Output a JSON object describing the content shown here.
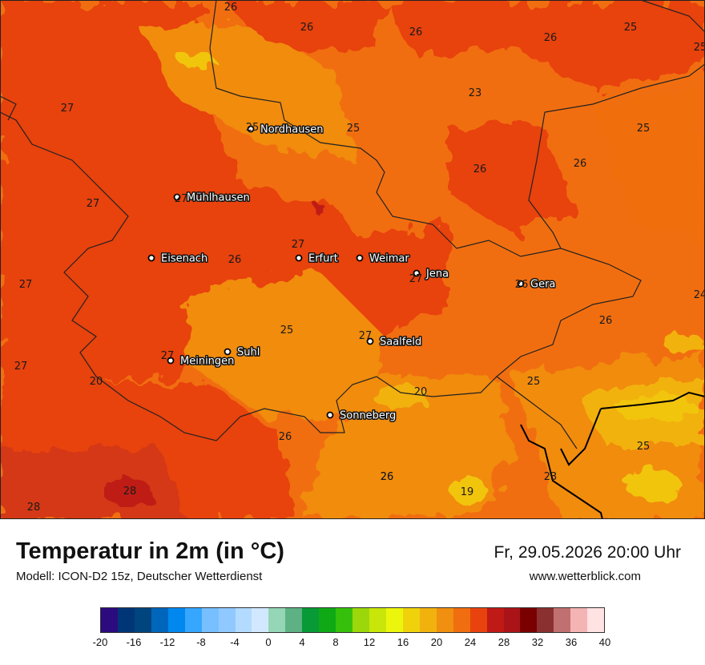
{
  "map": {
    "cities": [
      {
        "name": "Nordhausen"
      },
      {
        "name": "Mühlhausen"
      },
      {
        "name": "Eisenach"
      },
      {
        "name": "Erfurt"
      },
      {
        "name": "Weimar"
      },
      {
        "name": "Jena"
      },
      {
        "name": "Gera"
      },
      {
        "name": "Suhl"
      },
      {
        "name": "Meiningen"
      },
      {
        "name": "Saalfeld"
      },
      {
        "name": "Sonneberg"
      }
    ],
    "values": [
      "26",
      "26",
      "26",
      "26",
      "25",
      "25",
      "27",
      "23",
      "25",
      "27",
      "25",
      "26",
      "26",
      "27",
      "26",
      "27",
      "27",
      "27",
      "25",
      "27",
      "26",
      "25",
      "27",
      "27",
      "24",
      "26",
      "26",
      "20",
      "20",
      "25",
      "26",
      "25",
      "26",
      "23",
      "28",
      "28",
      "19"
    ],
    "colors": {
      "hot_dark": "#d43814",
      "hot": "#e8430f",
      "warm": "#f16e10",
      "orange": "#f18c10",
      "yellow": "#f2c511"
    }
  },
  "footer": {
    "title": "Temperatur in 2m (in °C)",
    "model": "Modell: ICON-D2 15z, Deutscher Wetterdienst",
    "datetime": "Fr, 29.05.2026 20:00 Uhr",
    "website": "www.wetterblick.com"
  },
  "scale": {
    "colors": [
      "#2c0b7f",
      "#003578",
      "#00457e",
      "#0066bb",
      "#0088ef",
      "#36a6ff",
      "#77bfff",
      "#90c9ff",
      "#b3dbff",
      "#d2e8ff",
      "#94d6b6",
      "#5db183",
      "#089a36",
      "#0fa916",
      "#37c00b",
      "#9bd70a",
      "#c8e60a",
      "#ecf50c",
      "#f0d20c",
      "#f2b20e",
      "#f18f10",
      "#f06e10",
      "#e8430f",
      "#bf1a15",
      "#aa1317",
      "#7a0000",
      "#8a3030",
      "#c07070",
      "#f4b4b4",
      "#ffe2e2"
    ],
    "ticks": [
      "-20",
      "-16",
      "-12",
      "-8",
      "-4",
      "0",
      "4",
      "8",
      "12",
      "16",
      "20",
      "24",
      "28",
      "32",
      "36",
      "40"
    ]
  }
}
